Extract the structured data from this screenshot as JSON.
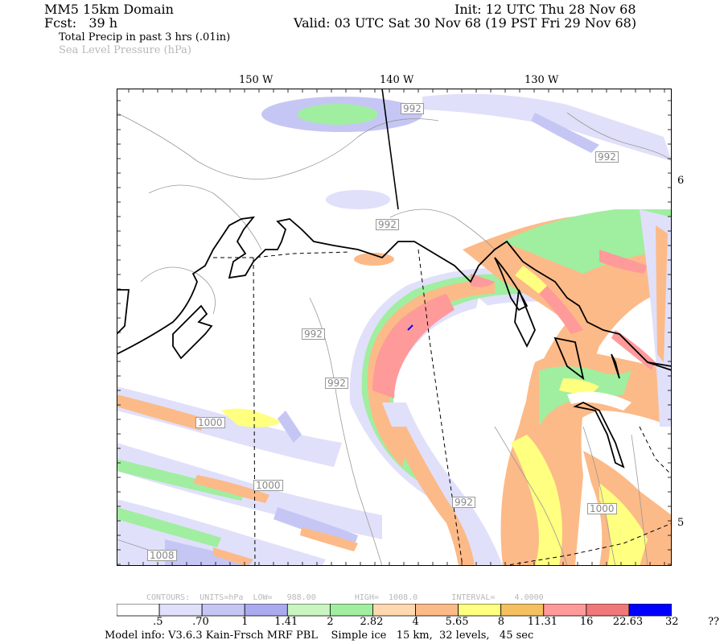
{
  "header": {
    "domain_title": "MM5 15km Domain",
    "fcst_label": "Fcst:   39 h",
    "init": "Init: 12 UTC Thu 28 Nov 68",
    "valid": "Valid: 03 UTC Sat 30 Nov 68 (19 PST Fri 29 Nov 68)",
    "field1": "Total Precip in past 3 hrs (.01in)",
    "field2": "Sea Level Pressure (hPa)"
  },
  "longitudes": [
    "150 W",
    "140 W",
    "130 W"
  ],
  "latitudes": [
    "6",
    "5"
  ],
  "isobar_labels": [
    "992",
    "992",
    "992",
    "992",
    "992",
    "992",
    "1000",
    "1000",
    "1000",
    "1008"
  ],
  "contour_info": "CONTOURS:  UNITS=hPa  LOW=   988.00        HIGH=  1008.0       INTERVAL=    4.0000",
  "legend": {
    "colors": [
      "#ffffff",
      "#e0e0fa",
      "#c6c6f5",
      "#aaaaee",
      "#c8f5c0",
      "#a0eea0",
      "#ffd8b0",
      "#fcba88",
      "#ffff80",
      "#f5c060",
      "#ff9a9a",
      "#f07878",
      "#0000ff"
    ],
    "labels": [
      ".5",
      ".70",
      "1",
      "1.41",
      "2",
      "2.82",
      "4",
      "5.65",
      "8",
      "11.31",
      "16",
      "22.63",
      "32",
      "??"
    ]
  },
  "model_info": "Model info: V3.6.3 Kain-Frsch MRF PBL    Simple ice   15 km,  32 levels,   45 sec"
}
